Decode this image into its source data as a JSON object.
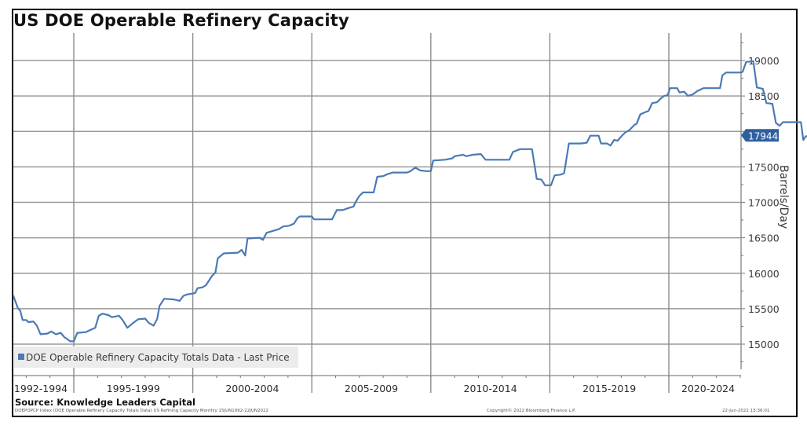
{
  "chart_data": {
    "type": "line",
    "title": "US DOE Operable Refinery Capacity",
    "xlabel": "",
    "ylabel": "Barrels/Day",
    "ylim": [
      14600,
      19300
    ],
    "xlim": [
      1992.4,
      2023.1
    ],
    "grid": true,
    "y_axis_side": "right",
    "yticks": [
      15000,
      15500,
      16000,
      16500,
      17000,
      17500,
      18000,
      18500,
      19000
    ],
    "ytick_labels": [
      "15000",
      "15500",
      "16000",
      "16500",
      "17000",
      "17500",
      "",
      "18500",
      "19000"
    ],
    "x_period_boundaries": [
      1995,
      2000,
      2005,
      2010,
      2015,
      2020
    ],
    "x_period_labels": [
      "1992-1994",
      "1995-1999",
      "2000-2004",
      "2005-2009",
      "2010-2014",
      "2015-2019",
      "2020-2024"
    ],
    "legend": {
      "placement": "bottom-left",
      "entries": [
        "DOE Operable Refinery Capacity Totals Data - Last Price"
      ]
    },
    "last_value_label": "17944",
    "series": [
      {
        "name": "DOE Operable Refinery Capacity Totals Data - Last Price",
        "color": "#4a7ab5",
        "points": [
          [
            1992.45,
            15690
          ],
          [
            1992.55,
            15600
          ],
          [
            1992.65,
            15510
          ],
          [
            1992.75,
            15470
          ],
          [
            1992.85,
            15340
          ],
          [
            1993.0,
            15340
          ],
          [
            1993.1,
            15310
          ],
          [
            1993.3,
            15320
          ],
          [
            1993.45,
            15260
          ],
          [
            1993.6,
            15140
          ],
          [
            1993.9,
            15150
          ],
          [
            1994.05,
            15180
          ],
          [
            1994.25,
            15140
          ],
          [
            1994.45,
            15160
          ],
          [
            1994.6,
            15100
          ],
          [
            1994.85,
            15040
          ],
          [
            1995.0,
            15040
          ],
          [
            1995.15,
            15160
          ],
          [
            1995.5,
            15170
          ],
          [
            1995.7,
            15200
          ],
          [
            1995.9,
            15230
          ],
          [
            1996.05,
            15400
          ],
          [
            1996.2,
            15430
          ],
          [
            1996.45,
            15410
          ],
          [
            1996.6,
            15380
          ],
          [
            1996.9,
            15400
          ],
          [
            1997.05,
            15340
          ],
          [
            1997.25,
            15230
          ],
          [
            1997.5,
            15300
          ],
          [
            1997.7,
            15350
          ],
          [
            1998.0,
            15360
          ],
          [
            1998.15,
            15300
          ],
          [
            1998.35,
            15260
          ],
          [
            1998.5,
            15350
          ],
          [
            1998.6,
            15540
          ],
          [
            1998.8,
            15640
          ],
          [
            1999.2,
            15630
          ],
          [
            1999.45,
            15610
          ],
          [
            1999.6,
            15680
          ],
          [
            1999.75,
            15700
          ],
          [
            2000.1,
            15720
          ],
          [
            2000.2,
            15790
          ],
          [
            2000.4,
            15800
          ],
          [
            2000.55,
            15830
          ],
          [
            2000.8,
            15960
          ],
          [
            2000.95,
            16010
          ],
          [
            2001.05,
            16210
          ],
          [
            2001.3,
            16280
          ],
          [
            2001.9,
            16290
          ],
          [
            2002.05,
            16330
          ],
          [
            2002.2,
            16250
          ],
          [
            2002.3,
            16490
          ],
          [
            2002.8,
            16500
          ],
          [
            2002.95,
            16470
          ],
          [
            2003.1,
            16570
          ],
          [
            2003.4,
            16600
          ],
          [
            2003.6,
            16620
          ],
          [
            2003.8,
            16660
          ],
          [
            2004.05,
            16670
          ],
          [
            2004.25,
            16700
          ],
          [
            2004.4,
            16780
          ],
          [
            2004.5,
            16800
          ],
          [
            2005.0,
            16800
          ],
          [
            2005.1,
            16760
          ],
          [
            2005.4,
            16760
          ],
          [
            2005.85,
            16760
          ],
          [
            2006.05,
            16890
          ],
          [
            2006.3,
            16890
          ],
          [
            2006.55,
            16920
          ],
          [
            2006.75,
            16940
          ],
          [
            2006.85,
            17010
          ],
          [
            2007.0,
            17090
          ],
          [
            2007.15,
            17140
          ],
          [
            2007.6,
            17140
          ],
          [
            2007.75,
            17360
          ],
          [
            2008.0,
            17370
          ],
          [
            2008.2,
            17400
          ],
          [
            2008.4,
            17420
          ],
          [
            2009.0,
            17420
          ],
          [
            2009.15,
            17440
          ],
          [
            2009.35,
            17490
          ],
          [
            2009.55,
            17450
          ],
          [
            2009.8,
            17440
          ],
          [
            2010.0,
            17440
          ],
          [
            2010.1,
            17590
          ],
          [
            2010.6,
            17600
          ],
          [
            2010.9,
            17620
          ],
          [
            2011.0,
            17650
          ],
          [
            2011.35,
            17670
          ],
          [
            2011.5,
            17650
          ],
          [
            2011.75,
            17670
          ],
          [
            2012.1,
            17680
          ],
          [
            2012.3,
            17600
          ],
          [
            2013.0,
            17600
          ],
          [
            2013.3,
            17600
          ],
          [
            2013.45,
            17710
          ],
          [
            2013.75,
            17750
          ],
          [
            2014.25,
            17750
          ],
          [
            2014.45,
            17330
          ],
          [
            2014.65,
            17320
          ],
          [
            2014.8,
            17240
          ],
          [
            2015.05,
            17240
          ],
          [
            2015.2,
            17380
          ],
          [
            2015.45,
            17390
          ],
          [
            2015.6,
            17410
          ],
          [
            2015.8,
            17830
          ],
          [
            2016.3,
            17830
          ],
          [
            2016.55,
            17840
          ],
          [
            2016.7,
            17940
          ],
          [
            2017.05,
            17940
          ],
          [
            2017.15,
            17830
          ],
          [
            2017.4,
            17830
          ],
          [
            2017.55,
            17800
          ],
          [
            2017.7,
            17880
          ],
          [
            2017.85,
            17870
          ],
          [
            2018.0,
            17930
          ],
          [
            2018.15,
            17980
          ],
          [
            2018.35,
            18020
          ],
          [
            2018.55,
            18090
          ],
          [
            2018.65,
            18110
          ],
          [
            2018.8,
            18240
          ],
          [
            2019.0,
            18270
          ],
          [
            2019.15,
            18290
          ],
          [
            2019.3,
            18400
          ],
          [
            2019.5,
            18410
          ],
          [
            2019.65,
            18460
          ],
          [
            2019.8,
            18500
          ],
          [
            2019.95,
            18510
          ],
          [
            2020.05,
            18610
          ],
          [
            2020.35,
            18610
          ],
          [
            2020.45,
            18550
          ],
          [
            2020.65,
            18560
          ],
          [
            2020.8,
            18500
          ],
          [
            2021.0,
            18520
          ],
          [
            2021.2,
            18570
          ],
          [
            2021.45,
            18610
          ],
          [
            2022.15,
            18610
          ],
          [
            2022.25,
            18790
          ],
          [
            2022.4,
            18830
          ],
          [
            2023.0,
            18830
          ],
          [
            2023.1,
            18840
          ],
          [
            2023.25,
            18980
          ],
          [
            2023.55,
            18990
          ],
          [
            2023.7,
            18620
          ],
          [
            2023.95,
            18600
          ],
          [
            2024.1,
            18400
          ],
          [
            2024.35,
            18390
          ],
          [
            2024.5,
            18120
          ],
          [
            2024.65,
            18080
          ],
          [
            2024.8,
            18130
          ],
          [
            2025.55,
            18130
          ],
          [
            2025.65,
            17880
          ],
          [
            2025.75,
            17930
          ],
          [
            2025.95,
            17944
          ]
        ]
      }
    ]
  },
  "source": "Source: Knowledge Leaders Capital",
  "footer": {
    "left": "DOEPOPCP Index (DOE Operable Refinery Capacity Totals Data) US Refining Capacity  Monthly 15JUN1992-22JUN2022",
    "middle": "Copyright© 2022 Bloomberg Finance L.P.",
    "right": "22-Jun-2022 13:36:01"
  }
}
